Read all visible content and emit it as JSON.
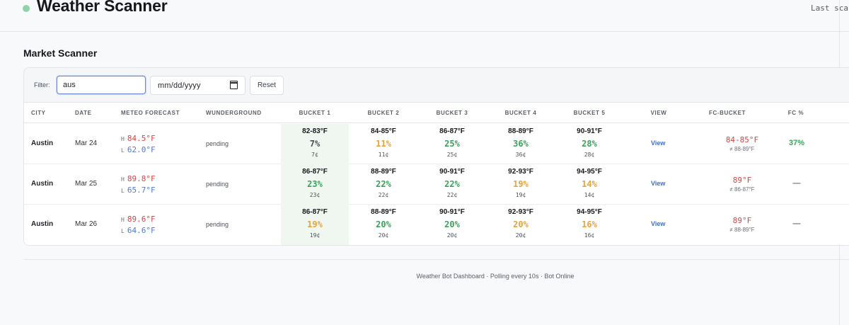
{
  "header": {
    "title": "Weather Scanner",
    "last_scan": "Last scan"
  },
  "section_title": "Market Scanner",
  "filters": {
    "label": "Filter:",
    "city_value": "aus",
    "date_placeholder": "mm/dd/yyyy",
    "reset_label": "Reset"
  },
  "columns": [
    "CITY",
    "DATE",
    "METEO FORECAST",
    "WUNDERGROUND",
    "BUCKET 1",
    "BUCKET 2",
    "BUCKET 3",
    "BUCKET 4",
    "BUCKET 5",
    "VIEW",
    "FC-BUCKET",
    "FC %"
  ],
  "forecast_labels": {
    "high": "H",
    "low": "L"
  },
  "rows": [
    {
      "city": "Austin",
      "date": "Mar 24",
      "high": "84.5°F",
      "low": "62.0°F",
      "wunderground": "pending",
      "buckets": [
        {
          "range": "82-83°F",
          "pct": "7%",
          "cents": "7¢",
          "color": "#4b5159"
        },
        {
          "range": "84-85°F",
          "pct": "11%",
          "cents": "11¢",
          "color": "#e8a33a"
        },
        {
          "range": "86-87°F",
          "pct": "25%",
          "cents": "25¢",
          "color": "#3aa35a"
        },
        {
          "range": "88-89°F",
          "pct": "36%",
          "cents": "36¢",
          "color": "#3aa35a"
        },
        {
          "range": "90-91°F",
          "pct": "28%",
          "cents": "28¢",
          "color": "#3aa35a"
        }
      ],
      "view": "View",
      "fc_bucket": "84-85°F",
      "fc_sub": "≠ 88-89°F",
      "fc_pct": "37%",
      "fc_pct_color": "#3aa35a"
    },
    {
      "city": "Austin",
      "date": "Mar 25",
      "high": "89.8°F",
      "low": "65.7°F",
      "wunderground": "pending",
      "buckets": [
        {
          "range": "86-87°F",
          "pct": "23%",
          "cents": "23¢",
          "color": "#3aa35a"
        },
        {
          "range": "88-89°F",
          "pct": "22%",
          "cents": "22¢",
          "color": "#3aa35a"
        },
        {
          "range": "90-91°F",
          "pct": "22%",
          "cents": "22¢",
          "color": "#3aa35a"
        },
        {
          "range": "92-93°F",
          "pct": "19%",
          "cents": "19¢",
          "color": "#e8a33a"
        },
        {
          "range": "94-95°F",
          "pct": "14%",
          "cents": "14¢",
          "color": "#e8a33a"
        }
      ],
      "view": "View",
      "fc_bucket": "89°F",
      "fc_sub": "≠ 86-87°F",
      "fc_pct": "—",
      "fc_pct_color": "#6b7078"
    },
    {
      "city": "Austin",
      "date": "Mar 26",
      "high": "89.6°F",
      "low": "64.6°F",
      "wunderground": "pending",
      "buckets": [
        {
          "range": "86-87°F",
          "pct": "19%",
          "cents": "19¢",
          "color": "#e8a33a"
        },
        {
          "range": "88-89°F",
          "pct": "20%",
          "cents": "20¢",
          "color": "#3aa35a"
        },
        {
          "range": "90-91°F",
          "pct": "20%",
          "cents": "20¢",
          "color": "#3aa35a"
        },
        {
          "range": "92-93°F",
          "pct": "20%",
          "cents": "20¢",
          "color": "#e8a33a"
        },
        {
          "range": "94-95°F",
          "pct": "16%",
          "cents": "16¢",
          "color": "#e8a33a"
        }
      ],
      "view": "View",
      "fc_bucket": "89°F",
      "fc_sub": "≠ 88-89°F",
      "fc_pct": "—",
      "fc_pct_color": "#6b7078"
    }
  ],
  "footer": "Weather Bot Dashboard · Polling every 10s · Bot Online"
}
